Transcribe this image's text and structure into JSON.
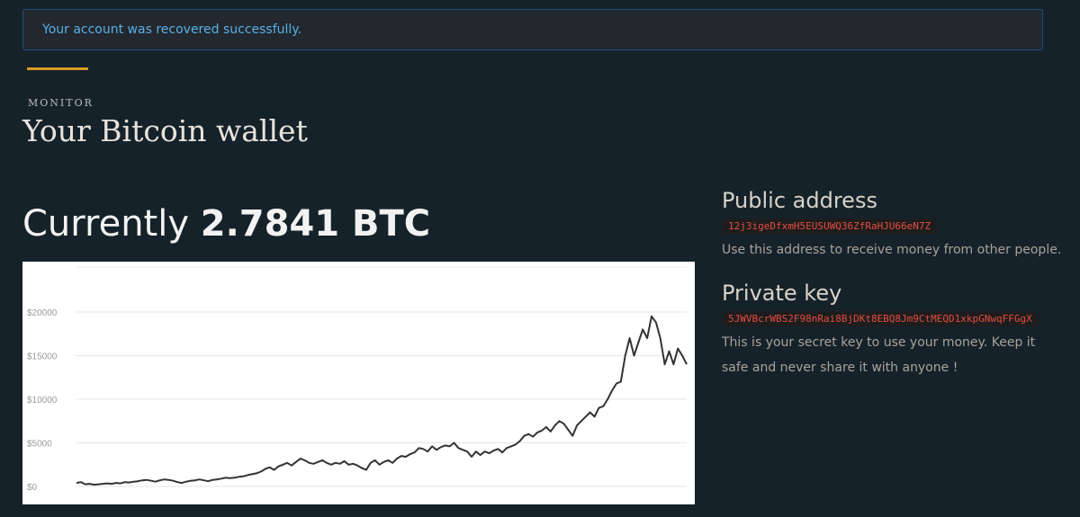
{
  "alert": {
    "message": "Your account was recovered successfully."
  },
  "header": {
    "eyebrow": "MONITOR",
    "title": "Your Bitcoin wallet"
  },
  "balance": {
    "prefix": "Currently",
    "amount": "2.7841 BTC"
  },
  "public_address": {
    "heading": "Public address",
    "value": "12j3igeDfxmH5EUSUWQ36ZfRaHJU66eN7Z",
    "description": "Use this address to receive money from other people."
  },
  "private_key": {
    "heading": "Private key",
    "value": "5JWVBcrWBS2F98nRai8BjDKt8EBQ8Jm9CtMEQD1xkpGNwqFFGgX",
    "description": "This is your secret key to use your money. Keep it safe and never share it with anyone !"
  },
  "colors": {
    "background": "#16222a",
    "alert_text": "#5bb0ea",
    "accent": "#d99a22",
    "key_text": "#e54d42",
    "chart_line": "#333333"
  },
  "chart_data": {
    "type": "line",
    "title": "",
    "xlabel": "",
    "ylabel": "",
    "ylim": [
      0,
      20000
    ],
    "y_ticks": [
      0,
      5000,
      10000,
      15000,
      20000
    ],
    "y_tick_labels": [
      "$0",
      "$5000",
      "$10000",
      "$15000",
      "$20000"
    ],
    "grid": true,
    "legend": "none",
    "series": [
      {
        "values": [
          400,
          500,
          250,
          300,
          200,
          250,
          300,
          350,
          300,
          400,
          350,
          500,
          450,
          550,
          600,
          700,
          750,
          650,
          550,
          700,
          800,
          750,
          650,
          500,
          400,
          550,
          650,
          700,
          800,
          700,
          600,
          750,
          800,
          900,
          1000,
          950,
          1000,
          1100,
          1150,
          1300,
          1400,
          1500,
          1700,
          2000,
          2200,
          1900,
          2300,
          2500,
          2700,
          2400,
          2800,
          3200,
          3000,
          2700,
          2600,
          2800,
          3000,
          2700,
          2500,
          2700,
          2600,
          2900,
          2500,
          2600,
          2400,
          2100,
          1900,
          2700,
          3000,
          2500,
          2800,
          3000,
          2700,
          3200,
          3500,
          3400,
          3700,
          3900,
          4400,
          4300,
          4000,
          4600,
          4200,
          4500,
          4700,
          4600,
          5000,
          4400,
          4200,
          4000,
          3400,
          4000,
          3600,
          4000,
          3800,
          4100,
          4300,
          3900,
          4400,
          4600,
          4800,
          5200,
          5800,
          6000,
          5700,
          6200,
          6400,
          6800,
          6300,
          7000,
          7500,
          7200,
          6500,
          5800,
          7000,
          7500,
          8000,
          8500,
          8000,
          9000,
          9200,
          10000,
          11000,
          11800,
          12000,
          15000,
          17000,
          15000,
          16500,
          18000,
          17000,
          19500,
          18800,
          17000,
          14000,
          15500,
          14000,
          15800,
          15000,
          14000
        ]
      }
    ]
  }
}
